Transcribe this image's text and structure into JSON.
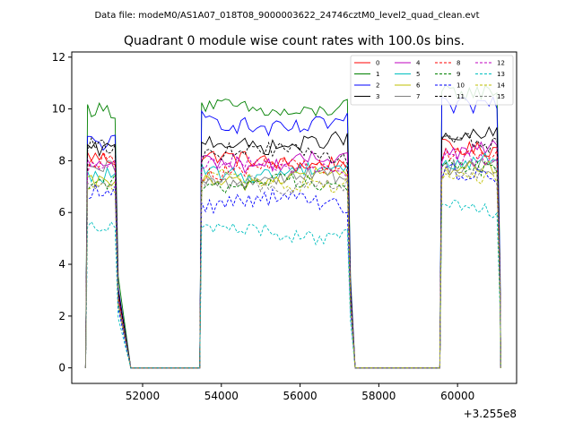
{
  "header": {
    "data_file": "Data file: modeM0/AS1A07_018T08_9000003622_24746cztM0_level2_quad_clean.evt"
  },
  "chart_data": {
    "type": "line",
    "title": "Quadrant 0 module wise count rates with 100.0s bins.",
    "xlabel": "",
    "ylabel": "",
    "x_offset_label": "+3.255e8",
    "xlim": [
      50200,
      61500
    ],
    "ylim": [
      -0.6,
      12.2
    ],
    "xticks": [
      52000,
      54000,
      56000,
      58000,
      60000
    ],
    "xtick_labels": [
      "52000",
      "54000",
      "56000",
      "58000",
      "60000"
    ],
    "yticks": [
      0,
      2,
      4,
      6,
      8,
      10,
      12
    ],
    "ytick_labels": [
      "0",
      "2",
      "4",
      "6",
      "8",
      "10",
      "12"
    ],
    "legend_position": "top-right",
    "segments": [
      {
        "x_start": 50600,
        "x_end": 51300,
        "ramp_end": 51700
      },
      {
        "x_start": 53500,
        "x_end": 57200,
        "ramp_end": 57400
      },
      {
        "x_start": 59600,
        "x_end": 61000,
        "ramp_end": 61100
      }
    ],
    "gap_level": 0.0,
    "series": [
      {
        "name": "0",
        "color": "#ff0000",
        "dash": false,
        "means": [
          8.2,
          8.0,
          8.6
        ],
        "noise": 0.3
      },
      {
        "name": "1",
        "color": "#008000",
        "dash": false,
        "means": [
          10.1,
          10.0,
          10.8
        ],
        "noise": 0.3
      },
      {
        "name": "2",
        "color": "#0000ff",
        "dash": false,
        "means": [
          8.9,
          9.4,
          10.3
        ],
        "noise": 0.35
      },
      {
        "name": "3",
        "color": "#000000",
        "dash": false,
        "means": [
          8.6,
          8.7,
          9.0
        ],
        "noise": 0.3
      },
      {
        "name": "4",
        "color": "#bf00bf",
        "dash": false,
        "means": [
          8.0,
          8.0,
          8.4
        ],
        "noise": 0.3
      },
      {
        "name": "5",
        "color": "#00bfbf",
        "dash": false,
        "means": [
          7.5,
          7.6,
          7.9
        ],
        "noise": 0.3
      },
      {
        "name": "6",
        "color": "#bfbf00",
        "dash": false,
        "means": [
          7.2,
          7.3,
          7.6
        ],
        "noise": 0.3
      },
      {
        "name": "7",
        "color": "#808080",
        "dash": false,
        "means": [
          7.6,
          7.3,
          7.7
        ],
        "noise": 0.3
      },
      {
        "name": "8",
        "color": "#ff0000",
        "dash": true,
        "means": [
          7.9,
          7.7,
          8.2
        ],
        "noise": 0.3
      },
      {
        "name": "9",
        "color": "#008000",
        "dash": true,
        "means": [
          7.0,
          7.1,
          7.6
        ],
        "noise": 0.3
      },
      {
        "name": "10",
        "color": "#0000ff",
        "dash": true,
        "means": [
          6.6,
          6.4,
          7.4
        ],
        "noise": 0.35
      },
      {
        "name": "11",
        "color": "#000000",
        "dash": true,
        "means": [
          8.4,
          8.3,
          8.7
        ],
        "noise": 0.3
      },
      {
        "name": "12",
        "color": "#bf00bf",
        "dash": true,
        "means": [
          7.6,
          7.8,
          8.1
        ],
        "noise": 0.3
      },
      {
        "name": "13",
        "color": "#00bfbf",
        "dash": true,
        "means": [
          5.5,
          5.2,
          6.2
        ],
        "noise": 0.3
      },
      {
        "name": "14",
        "color": "#bfbf00",
        "dash": true,
        "means": [
          7.0,
          7.2,
          7.5
        ],
        "noise": 0.3
      },
      {
        "name": "15",
        "color": "#808080",
        "dash": true,
        "means": [
          7.3,
          7.1,
          7.7
        ],
        "noise": 0.3
      }
    ]
  }
}
